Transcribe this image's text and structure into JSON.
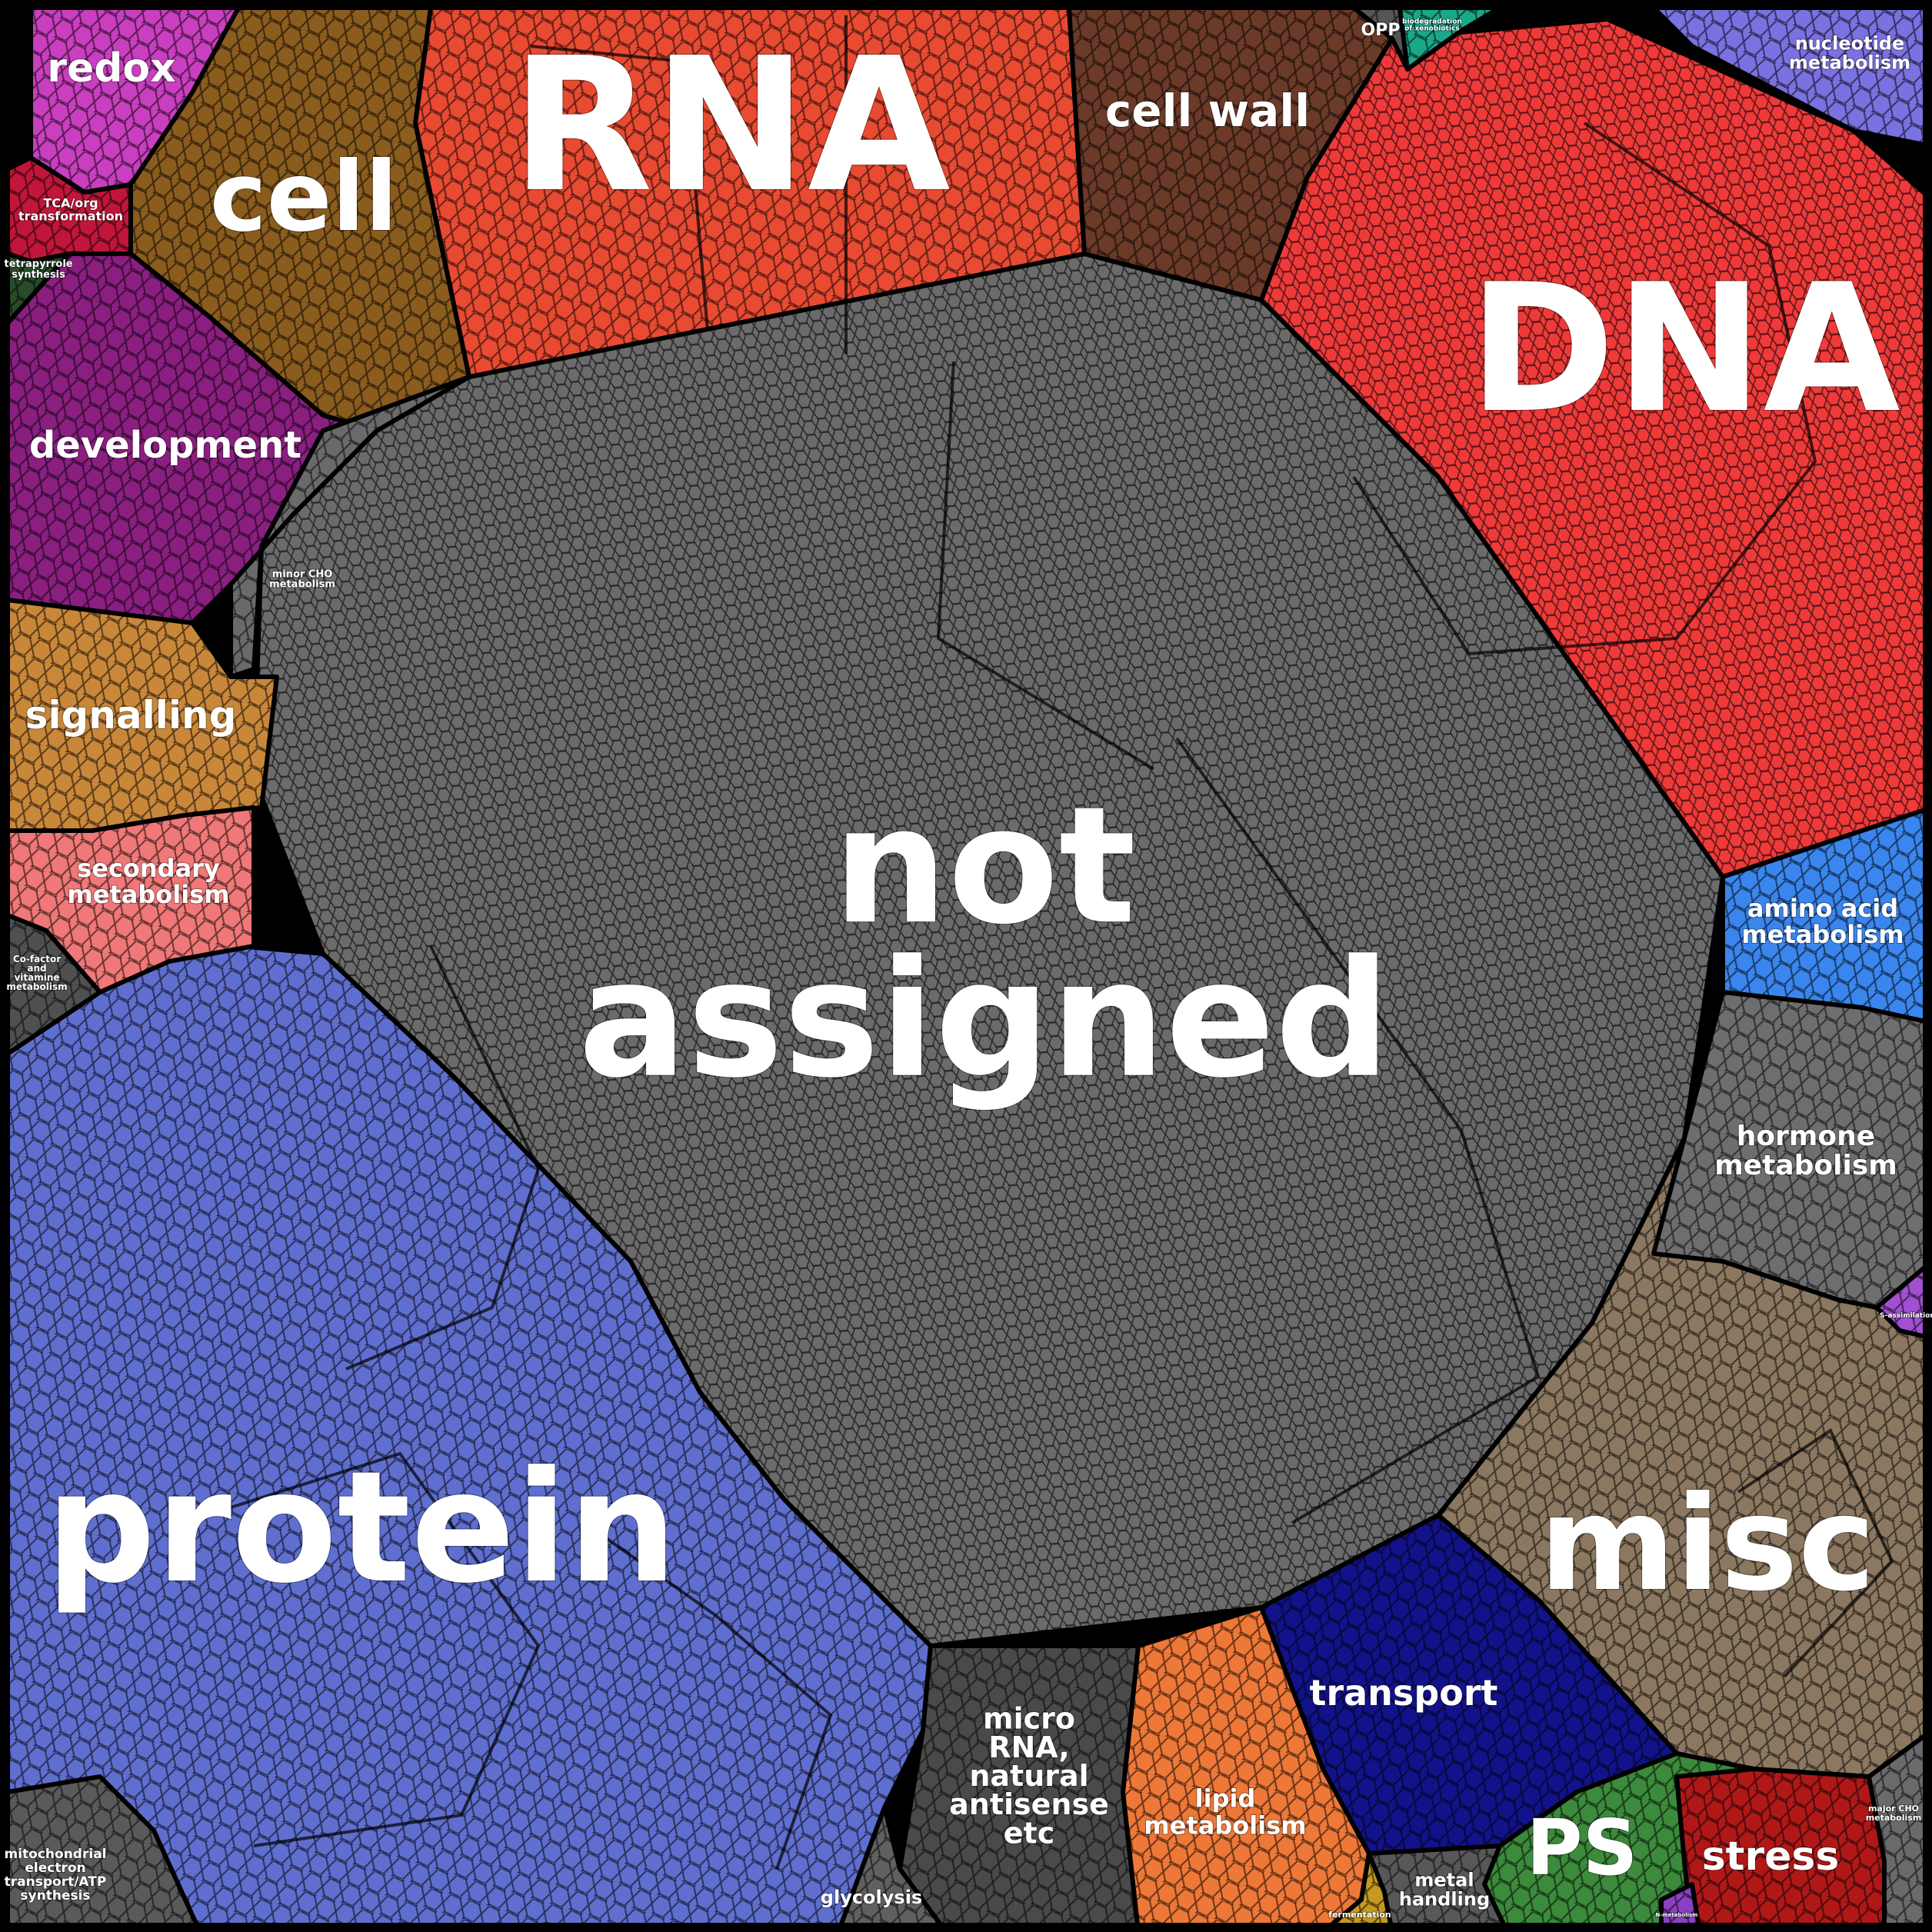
{
  "diagram": {
    "type": "voronoi-treemap",
    "categories": [
      {
        "id": "not-assigned",
        "lines": [
          "not",
          "assigned"
        ],
        "color": "#6b6b6b"
      },
      {
        "id": "dna",
        "lines": [
          "DNA"
        ],
        "color": "#f03a3a"
      },
      {
        "id": "protein",
        "lines": [
          "protein"
        ],
        "color": "#5f6fcf"
      },
      {
        "id": "rna",
        "lines": [
          "RNA"
        ],
        "color": "#e84a32"
      },
      {
        "id": "misc",
        "lines": [
          "misc"
        ],
        "color": "#8c7860"
      },
      {
        "id": "cell",
        "lines": [
          "cell"
        ],
        "color": "#8a5c1e"
      },
      {
        "id": "cell-wall",
        "lines": [
          "cell wall"
        ],
        "color": "#6b3a28"
      },
      {
        "id": "development",
        "lines": [
          "development"
        ],
        "color": "#8a1f80"
      },
      {
        "id": "redox",
        "lines": [
          "redox"
        ],
        "color": "#c93fbf"
      },
      {
        "id": "tca",
        "lines": [
          "TCA/org",
          "transformation"
        ],
        "color": "#c2153a"
      },
      {
        "id": "tetrapyrrole",
        "lines": [
          "tetrapyrrole",
          "synthesis"
        ],
        "color": "#2a4a2a"
      },
      {
        "id": "signalling",
        "lines": [
          "signalling"
        ],
        "color": "#c9873a"
      },
      {
        "id": "secondary-metabolism",
        "lines": [
          "secondary",
          "metabolism"
        ],
        "color": "#f07878"
      },
      {
        "id": "cofactor",
        "lines": [
          "Co-factor",
          "and",
          "vitamine",
          "metabolism"
        ],
        "color": "#505050"
      },
      {
        "id": "minor-cho",
        "lines": [
          "minor CHO",
          "metabolism"
        ],
        "color": "#6a6a6a"
      },
      {
        "id": "amino-acid",
        "lines": [
          "amino acid",
          "metabolism"
        ],
        "color": "#3a86ee"
      },
      {
        "id": "hormone",
        "lines": [
          "hormone",
          "metabolism"
        ],
        "color": "#6e6e6e"
      },
      {
        "id": "nucleotide",
        "lines": [
          "nucleotide",
          "metabolism"
        ],
        "color": "#7a72e0"
      },
      {
        "id": "opp",
        "lines": [
          "OPP"
        ],
        "color": "#555555"
      },
      {
        "id": "teal-small",
        "lines": [
          "biodegradation",
          "of xenobiotics"
        ],
        "color": "#1aa88a"
      },
      {
        "id": "transport",
        "lines": [
          "transport"
        ],
        "color": "#12128a"
      },
      {
        "id": "lipid",
        "lines": [
          "lipid",
          "metabolism"
        ],
        "color": "#ee7838"
      },
      {
        "id": "micro-rna",
        "lines": [
          "micro",
          "RNA,",
          "natural",
          "antisense",
          "etc"
        ],
        "color": "#4a4a4a"
      },
      {
        "id": "ps",
        "lines": [
          "PS"
        ],
        "color": "#3c8a3c"
      },
      {
        "id": "stress",
        "lines": [
          "stress"
        ],
        "color": "#b01818"
      },
      {
        "id": "metal",
        "lines": [
          "metal",
          "handling"
        ],
        "color": "#585858"
      },
      {
        "id": "fermentation",
        "lines": [
          "fermentation"
        ],
        "color": "#c49a20"
      },
      {
        "id": "glycolysis",
        "lines": [
          "glycolysis"
        ],
        "color": "#606060"
      },
      {
        "id": "mito",
        "lines": [
          "mitochondrial",
          "electron",
          "transport/ATP",
          "synthesis"
        ],
        "color": "#5a5a5a"
      },
      {
        "id": "major-cho",
        "lines": [
          "major CHO",
          "metabolism"
        ],
        "color": "#6a6a6a"
      },
      {
        "id": "purple-small",
        "lines": [
          "S-assimilation"
        ],
        "color": "#a050d0"
      },
      {
        "id": "purple-bottom",
        "lines": [
          "N-metabolism"
        ],
        "color": "#8a40c0"
      }
    ]
  }
}
